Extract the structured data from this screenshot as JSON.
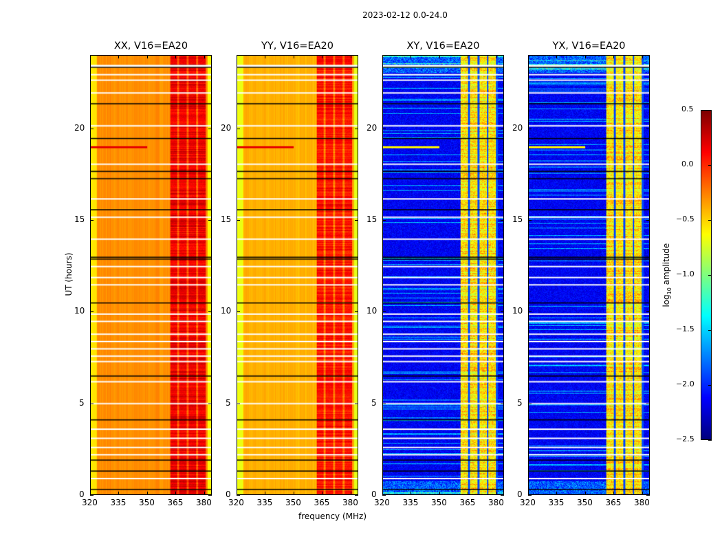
{
  "suptitle": "2023-02-12 0.0-24.0",
  "chart_data": {
    "type": "heatmap",
    "xlabel": "frequency (MHz)",
    "ylabel": "UT (hours)",
    "xlim": [
      320,
      384
    ],
    "ylim": [
      0,
      24
    ],
    "xticks": [
      320,
      335,
      350,
      365,
      380
    ],
    "yticks": [
      0,
      5,
      10,
      15,
      20
    ],
    "panels": [
      {
        "title": "XX, V16=EA20",
        "kind": "parallel",
        "background_level": -0.35,
        "rfi_band_mhz": [
          362,
          381
        ],
        "rfi_level": 0.25
      },
      {
        "title": "YY, V16=EA20",
        "kind": "parallel",
        "background_level": -0.45,
        "rfi_band_mhz": [
          362,
          381
        ],
        "rfi_level": 0.15
      },
      {
        "title": "XY, V16=EA20",
        "kind": "cross",
        "background_level": -2.3,
        "rfi_band_mhz": [
          361,
          381
        ],
        "rfi_level": -0.6
      },
      {
        "title": "YX, V16=EA20",
        "kind": "cross",
        "background_level": -2.3,
        "rfi_band_mhz": [
          361,
          381
        ],
        "rfi_level": -0.6
      }
    ],
    "flagged_ut_white": [
      0.9,
      2.2,
      2.6,
      3.1,
      3.6,
      5.0,
      6.2,
      7.3,
      7.6,
      8.0,
      8.4,
      8.8,
      9.5,
      9.9,
      11.5,
      11.9,
      12.5,
      14.0,
      15.2,
      16.2,
      18.1,
      20.2,
      22.0,
      22.7,
      23.0,
      23.5
    ],
    "boundary_ut_black": [
      0.3,
      1.3,
      1.9,
      4.1,
      6.5,
      10.5,
      12.9,
      13.0,
      15.6,
      17.3,
      17.7,
      19.5,
      21.4,
      23.4
    ],
    "rfi_burst_ut": 19.0,
    "colorbar": {
      "label": "log10 amplitude",
      "colormap": "jet",
      "range": [
        -2.5,
        0.5
      ],
      "ticks": [
        "0.5",
        "0.0",
        "−0.5",
        "−1.0",
        "−1.5",
        "−2.0",
        "−2.5"
      ],
      "tick_values": [
        0.5,
        0.0,
        -0.5,
        -1.0,
        -1.5,
        -2.0,
        -2.5
      ]
    }
  }
}
